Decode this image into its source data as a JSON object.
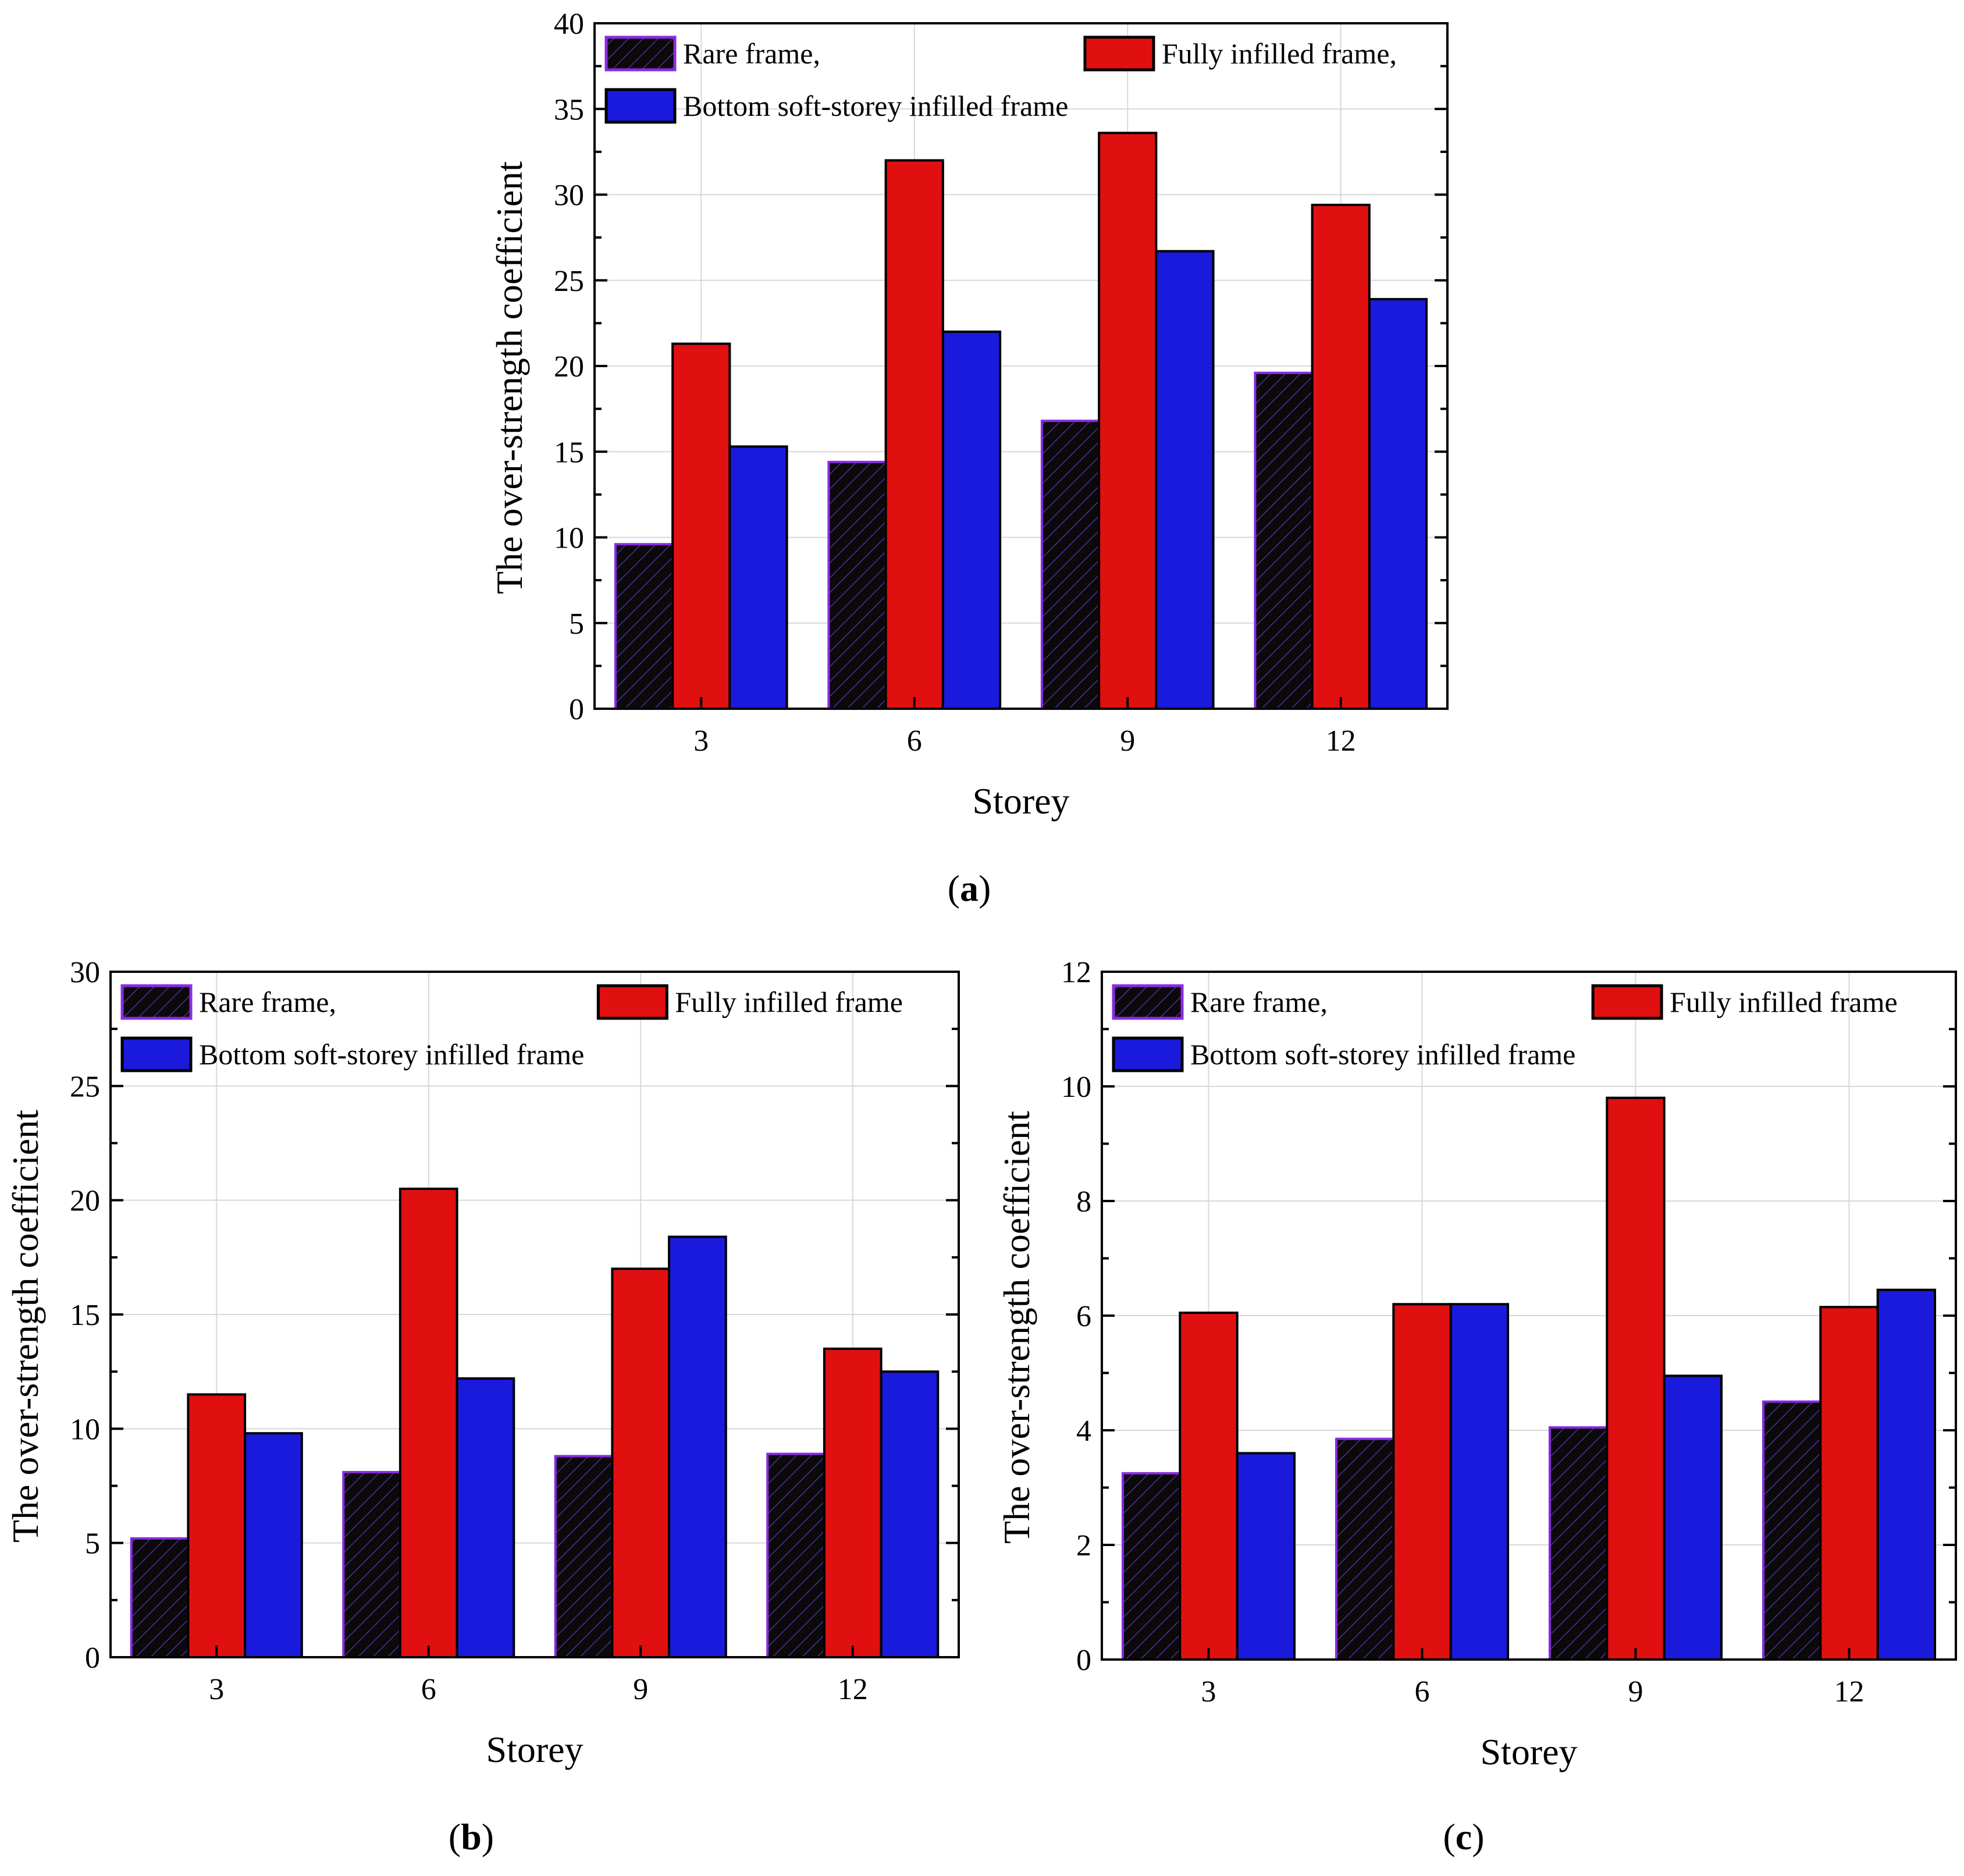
{
  "figure": {
    "captions": [
      {
        "open": "(",
        "label": "a",
        "close": ")"
      },
      {
        "open": "(",
        "label": "b",
        "close": ")"
      },
      {
        "open": "(",
        "label": "c",
        "close": ")"
      }
    ]
  },
  "colors": {
    "rare": "#0a0a0a",
    "rare_hatch": "#5a2a9a",
    "full": "#e01010",
    "bottom": "#1a1adc",
    "legend_rare_border": "#8a2be2",
    "axis": "#000000",
    "grid": "#d8d8d8"
  },
  "chart_data": [
    {
      "id": "a",
      "type": "bar",
      "categories": [
        "3",
        "6",
        "9",
        "12"
      ],
      "series": [
        {
          "key": "rare",
          "name": "Rare frame,",
          "values": [
            9.6,
            14.4,
            16.8,
            19.6
          ]
        },
        {
          "key": "full",
          "name": "Fully infilled frame,",
          "values": [
            21.3,
            32.0,
            33.6,
            29.4
          ]
        },
        {
          "key": "bottom",
          "name": "Bottom soft-storey infilled frame",
          "values": [
            15.3,
            22.0,
            26.7,
            23.9
          ]
        }
      ],
      "xlabel": "Storey",
      "ylabel": "The over-strength coefficient",
      "ylim": [
        0,
        40
      ],
      "yticks": [
        0,
        5,
        10,
        15,
        20,
        25,
        30,
        35,
        40
      ],
      "grid": true,
      "legend": "top"
    },
    {
      "id": "b",
      "type": "bar",
      "categories": [
        "3",
        "6",
        "9",
        "12"
      ],
      "series": [
        {
          "key": "rare",
          "name": "Rare frame,",
          "values": [
            5.2,
            8.1,
            8.8,
            8.9
          ]
        },
        {
          "key": "full",
          "name": "Fully infilled frame",
          "values": [
            11.5,
            20.5,
            17.0,
            13.5
          ]
        },
        {
          "key": "bottom",
          "name": "Bottom soft-storey infilled frame",
          "values": [
            9.8,
            12.2,
            18.4,
            12.5
          ]
        }
      ],
      "xlabel": "Storey",
      "ylabel": "The over-strength coefficient",
      "ylim": [
        0,
        30
      ],
      "yticks": [
        0,
        5,
        10,
        15,
        20,
        25,
        30
      ],
      "grid": true,
      "legend": "top"
    },
    {
      "id": "c",
      "type": "bar",
      "categories": [
        "3",
        "6",
        "9",
        "12"
      ],
      "series": [
        {
          "key": "rare",
          "name": "Rare frame,",
          "values": [
            3.25,
            3.85,
            4.05,
            4.5
          ]
        },
        {
          "key": "full",
          "name": "Fully infilled frame",
          "values": [
            6.05,
            6.2,
            9.8,
            6.15
          ]
        },
        {
          "key": "bottom",
          "name": "Bottom soft-storey infilled frame",
          "values": [
            3.6,
            6.2,
            4.95,
            6.45
          ]
        }
      ],
      "xlabel": "Storey",
      "ylabel": "The over-strength coefficient",
      "ylim": [
        0,
        12
      ],
      "yticks": [
        0,
        2,
        4,
        6,
        8,
        10,
        12
      ],
      "grid": true,
      "legend": "top"
    }
  ]
}
